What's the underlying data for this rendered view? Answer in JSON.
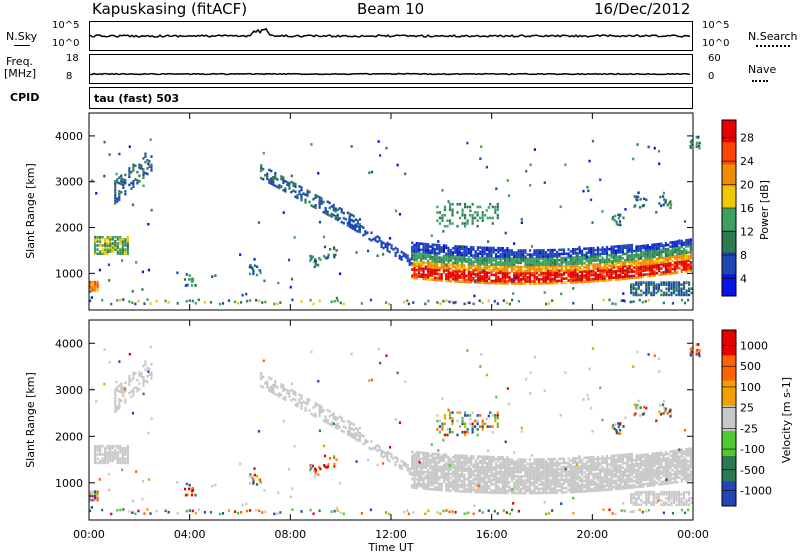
{
  "header": {
    "station": "Kapuskasing (fitACF)",
    "beam": "Beam 10",
    "date": "16/Dec/2012"
  },
  "top_panels": {
    "nsky_label": "N.Sky",
    "nsky_ticks": [
      "10^5",
      "10^0"
    ],
    "nsearch_label": "N.Search",
    "nsearch_ticks": [
      "10^5",
      "10^0"
    ],
    "freq_label": "Freq.",
    "freq_unit": "[MHz]",
    "freq_ticks": [
      "18",
      "8"
    ],
    "nave_label": "Nave",
    "nave_ticks": [
      "60",
      "0"
    ],
    "cpid_label": "CPID",
    "cpid_text": "tau (fast) 503"
  },
  "colors": {
    "power": [
      "#0a14e6",
      "#1e46b4",
      "#2e7a50",
      "#3ca060",
      "#f0c800",
      "#f08c00",
      "#ff4600",
      "#e60000"
    ],
    "velocity": [
      "#2346b4",
      "#2e7a50",
      "#50c832",
      "#c8c8c8",
      "#f0a000",
      "#ff6400",
      "#e60000"
    ],
    "ground_scatter": "#c8c8c8"
  },
  "chart_data": [
    {
      "type": "heatmap",
      "name": "power",
      "ylabel": "Slant Range [km]",
      "xlabel": "Time UT",
      "ylim": [
        200,
        4500
      ],
      "y_ticks": [
        1000,
        2000,
        3000,
        4000
      ],
      "x_ticks": [
        "00:00",
        "04:00",
        "08:00",
        "12:00",
        "16:00",
        "20:00",
        "00:00"
      ],
      "colorbar_label": "Power [dB]",
      "colorbar_ticks": [
        "28",
        "24",
        "20",
        "16",
        "12",
        "8",
        "4"
      ],
      "features": [
        {
          "t0": 0.3,
          "t1": 1.6,
          "r0": 1400,
          "r1": 1800,
          "level": 3
        },
        {
          "t0": 0.0,
          "t1": 0.4,
          "r0": 600,
          "r1": 800,
          "level": 4
        },
        {
          "t0": 1.0,
          "t1": 2.5,
          "r0": 2400,
          "r1": 3300,
          "level": 1
        },
        {
          "t0": 7.0,
          "t1": 9.5,
          "r0": 2200,
          "r1": 3300,
          "level": 1
        },
        {
          "t0": 12.8,
          "t1": 23.9,
          "r0": 800,
          "r1": 1600,
          "level": 6
        },
        {
          "t0": 21.5,
          "t1": 23.9,
          "r0": 500,
          "r1": 800,
          "level": 2
        }
      ]
    },
    {
      "type": "heatmap",
      "name": "velocity",
      "ylabel": "Slant Range [km]",
      "xlabel": "Time UT",
      "ylim": [
        200,
        4500
      ],
      "y_ticks": [
        1000,
        2000,
        3000,
        4000
      ],
      "x_ticks": [
        "00:00",
        "04:00",
        "08:00",
        "12:00",
        "16:00",
        "20:00",
        "00:00"
      ],
      "colorbar_label": "Velocity [m s-1]",
      "colorbar_ticks": [
        "1000",
        "500",
        "100",
        "25",
        "-25",
        "-100",
        "-500",
        "-1000"
      ]
    }
  ]
}
